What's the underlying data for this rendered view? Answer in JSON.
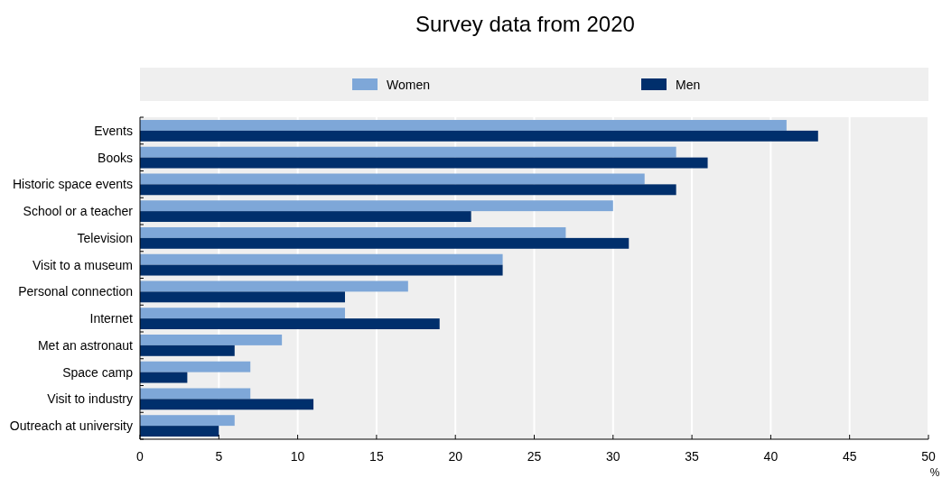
{
  "chart_data": {
    "type": "bar",
    "orientation": "horizontal",
    "title": "Survey data from 2020",
    "xlabel": "%",
    "categories": [
      "Events",
      "Books",
      "Historic space events",
      "School or a teacher",
      "Television",
      "Visit to a museum",
      "Personal connection",
      "Internet",
      "Met an astronaut",
      "Space camp",
      "Visit to industry",
      "Outreach at university"
    ],
    "series": [
      {
        "name": "Women",
        "color": "#7ea7d8",
        "values": [
          41,
          34,
          32,
          30,
          27,
          23,
          17,
          13,
          9,
          7,
          7,
          6
        ]
      },
      {
        "name": "Men",
        "color": "#002f6c",
        "values": [
          43,
          36,
          34,
          21,
          31,
          23,
          13,
          19,
          6,
          3,
          11,
          5
        ]
      }
    ],
    "xlim": [
      0,
      50
    ],
    "xticks": [
      0,
      5,
      10,
      15,
      20,
      25,
      30,
      35,
      40,
      45,
      50
    ],
    "grid": "x",
    "legend": "top"
  }
}
